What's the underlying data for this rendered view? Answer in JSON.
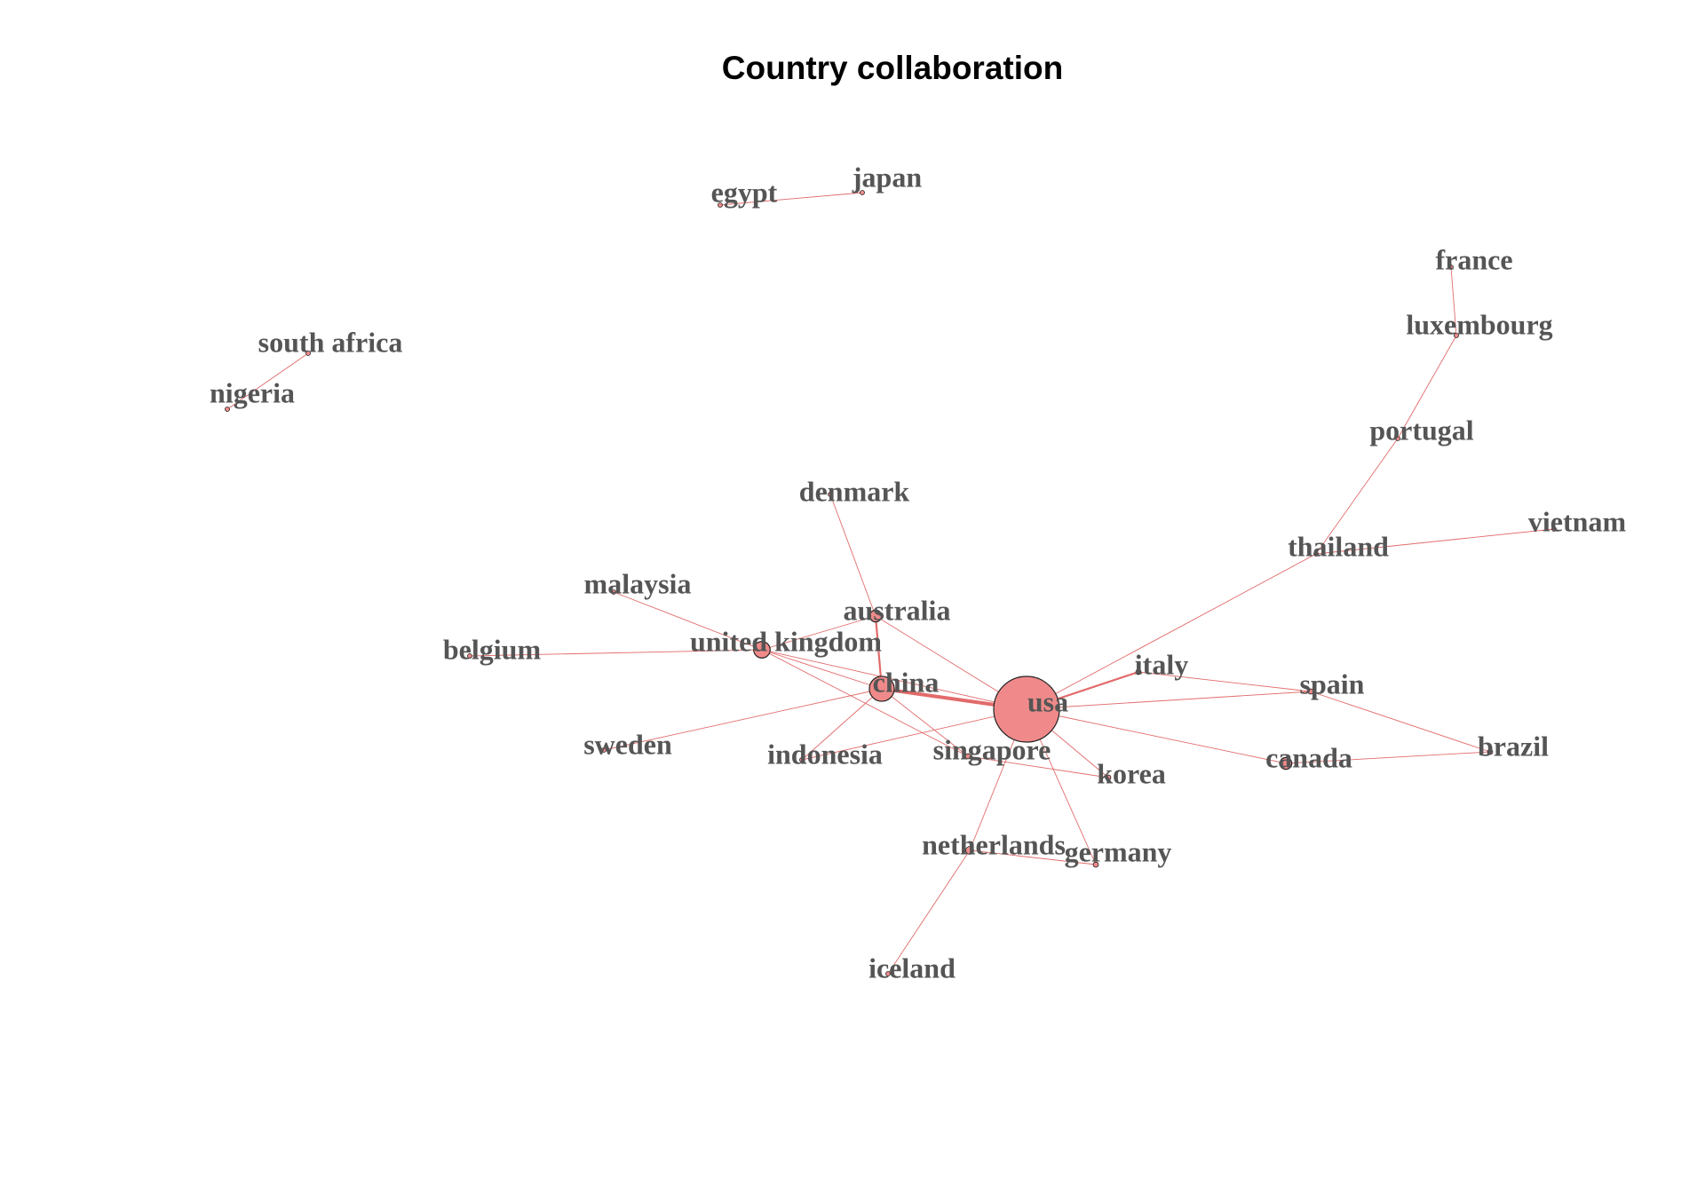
{
  "title": "Country collaboration",
  "colors": {
    "edge": "#e26b6b",
    "node_fill": "#f08a8a",
    "label": "#555555"
  },
  "chart_data": {
    "type": "network",
    "nodes": [
      {
        "id": "usa",
        "label": "usa",
        "size": 1.0
      },
      {
        "id": "china",
        "label": "china",
        "size": 0.38
      },
      {
        "id": "uk",
        "label": "united kingdom",
        "size": 0.25
      },
      {
        "id": "australia",
        "label": "australia",
        "size": 0.18
      },
      {
        "id": "canada",
        "label": "canada",
        "size": 0.18
      },
      {
        "id": "netherlands",
        "label": "netherlands",
        "size": 0.12
      },
      {
        "id": "italy",
        "label": "italy",
        "size": 0.08
      },
      {
        "id": "spain",
        "label": "spain",
        "size": 0.08
      },
      {
        "id": "brazil",
        "label": "brazil",
        "size": 0.08
      },
      {
        "id": "korea",
        "label": "korea",
        "size": 0.08
      },
      {
        "id": "germany",
        "label": "germany",
        "size": 0.08
      },
      {
        "id": "singapore",
        "label": "singapore",
        "size": 0.08
      },
      {
        "id": "indonesia",
        "label": "indonesia",
        "size": 0.06
      },
      {
        "id": "sweden",
        "label": "sweden",
        "size": 0.06
      },
      {
        "id": "belgium",
        "label": "belgium",
        "size": 0.04
      },
      {
        "id": "malaysia",
        "label": "malaysia",
        "size": 0.04
      },
      {
        "id": "denmark",
        "label": "denmark",
        "size": 0.04
      },
      {
        "id": "thailand",
        "label": "thailand",
        "size": 0.06
      },
      {
        "id": "vietnam",
        "label": "vietnam",
        "size": 0.04
      },
      {
        "id": "portugal",
        "label": "portugal",
        "size": 0.04
      },
      {
        "id": "luxembourg",
        "label": "luxembourg",
        "size": 0.04
      },
      {
        "id": "france",
        "label": "france",
        "size": 0.04
      },
      {
        "id": "iceland",
        "label": "iceland",
        "size": 0.04
      },
      {
        "id": "egypt",
        "label": "egypt",
        "size": 0.04
      },
      {
        "id": "japan",
        "label": "japan",
        "size": 0.04
      },
      {
        "id": "south_africa",
        "label": "south africa",
        "size": 0.04
      },
      {
        "id": "nigeria",
        "label": "nigeria",
        "size": 0.04
      }
    ],
    "edges": [
      {
        "source": "usa",
        "target": "china",
        "weight": 4
      },
      {
        "source": "usa",
        "target": "italy",
        "weight": 2
      },
      {
        "source": "usa",
        "target": "uk",
        "weight": 1
      },
      {
        "source": "usa",
        "target": "australia",
        "weight": 1
      },
      {
        "source": "usa",
        "target": "canada",
        "weight": 1
      },
      {
        "source": "usa",
        "target": "spain",
        "weight": 1
      },
      {
        "source": "usa",
        "target": "thailand",
        "weight": 1
      },
      {
        "source": "usa",
        "target": "korea",
        "weight": 1
      },
      {
        "source": "usa",
        "target": "germany",
        "weight": 1
      },
      {
        "source": "usa",
        "target": "netherlands",
        "weight": 1
      },
      {
        "source": "usa",
        "target": "indonesia",
        "weight": 1
      },
      {
        "source": "uk",
        "target": "china",
        "weight": 1
      },
      {
        "source": "uk",
        "target": "australia",
        "weight": 1
      },
      {
        "source": "uk",
        "target": "malaysia",
        "weight": 1
      },
      {
        "source": "uk",
        "target": "belgium",
        "weight": 1
      },
      {
        "source": "uk",
        "target": "singapore",
        "weight": 1
      },
      {
        "source": "china",
        "target": "australia",
        "weight": 2
      },
      {
        "source": "china",
        "target": "sweden",
        "weight": 1
      },
      {
        "source": "china",
        "target": "indonesia",
        "weight": 1
      },
      {
        "source": "china",
        "target": "singapore",
        "weight": 1
      },
      {
        "source": "australia",
        "target": "denmark",
        "weight": 1
      },
      {
        "source": "singapore",
        "target": "korea",
        "weight": 1
      },
      {
        "source": "italy",
        "target": "spain",
        "weight": 1
      },
      {
        "source": "spain",
        "target": "brazil",
        "weight": 1
      },
      {
        "source": "canada",
        "target": "brazil",
        "weight": 1
      },
      {
        "source": "thailand",
        "target": "vietnam",
        "weight": 1
      },
      {
        "source": "thailand",
        "target": "portugal",
        "weight": 1
      },
      {
        "source": "portugal",
        "target": "luxembourg",
        "weight": 1
      },
      {
        "source": "luxembourg",
        "target": "france",
        "weight": 1
      },
      {
        "source": "netherlands",
        "target": "germany",
        "weight": 1
      },
      {
        "source": "netherlands",
        "target": "iceland",
        "weight": 1
      },
      {
        "source": "egypt",
        "target": "japan",
        "weight": 1
      },
      {
        "source": "south_africa",
        "target": "nigeria",
        "weight": 1
      }
    ]
  }
}
